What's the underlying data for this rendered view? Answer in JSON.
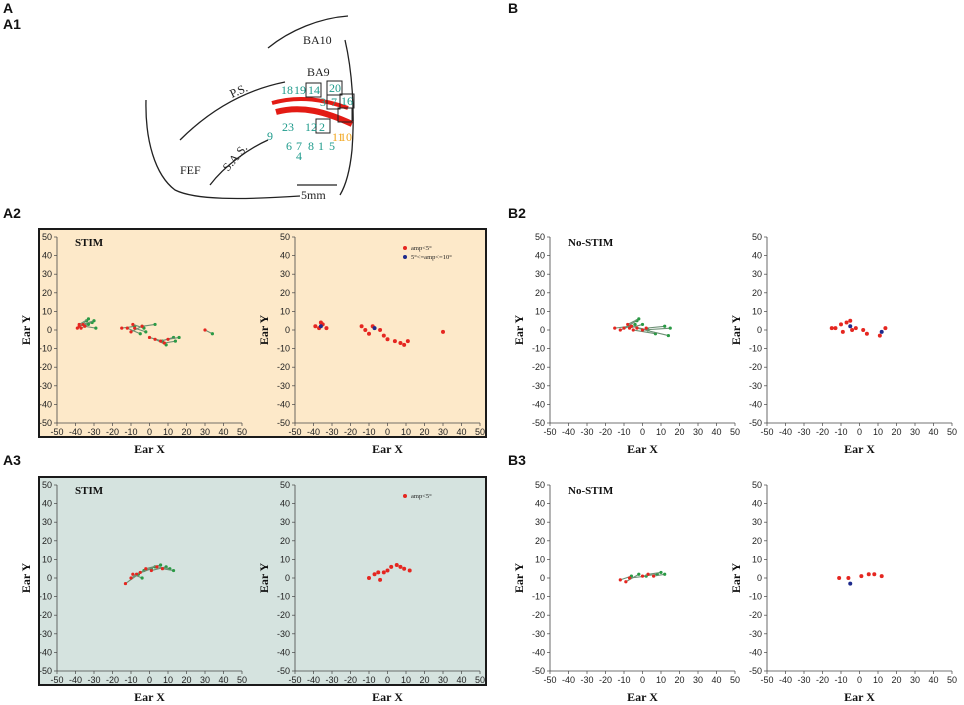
{
  "panel_labels": {
    "A": "A",
    "A1": "A1",
    "A2": "A2",
    "A3": "A3",
    "B": "B",
    "B2": "B2",
    "B3": "B3"
  },
  "colors": {
    "stim_bg_A2": "#fde9c9",
    "stim_bg_A3": "#d5e3df",
    "panel_border": "#1a1a1a",
    "start_point": "#e52620",
    "end_point": "#2a9a45",
    "amp_small": "#e52620",
    "amp_large": "#1d2a8c",
    "site_teal": "#1f9b8c",
    "site_orange": "#f2a51c",
    "sulcus": "#e31b14"
  },
  "brain_map": {
    "labels": {
      "ba10": "BA10",
      "ba9": "BA9",
      "ps": "P.S.",
      "sas": "S.A.S.",
      "fef": "FEF",
      "scale_bar": "5mm"
    },
    "sites_teal": [
      "18",
      "19",
      "14",
      "20",
      "3",
      "7",
      "16",
      "23",
      "12",
      "2",
      "9",
      "6",
      "7",
      "8",
      "1",
      "5",
      "4"
    ],
    "sites_orange": [
      "11",
      "10"
    ]
  },
  "chart_data": [
    {
      "id": "A2-left",
      "type": "line",
      "condition_label": "STIM",
      "xlabel": "Ear X",
      "ylabel": "Ear Y",
      "xlim": [
        -50,
        50
      ],
      "ylim": [
        -50,
        50
      ],
      "xticks": [
        -50,
        -40,
        -30,
        -20,
        -10,
        0,
        10,
        20,
        30,
        40,
        50
      ],
      "yticks": [
        50,
        40,
        30,
        20,
        10,
        0,
        -10,
        -20,
        -30,
        -40,
        -50
      ],
      "series": [
        {
          "name": "trajectory",
          "x0": -39,
          "y0": 1,
          "x1": -34,
          "y1": 5
        },
        {
          "name": "trajectory",
          "x0": -38,
          "y0": 2,
          "x1": -31,
          "y1": 4
        },
        {
          "name": "trajectory",
          "x0": -36,
          "y0": 3,
          "x1": -30,
          "y1": 5
        },
        {
          "name": "trajectory",
          "x0": -37,
          "y0": 1,
          "x1": -33,
          "y1": 3
        },
        {
          "name": "trajectory",
          "x0": -35,
          "y0": 2,
          "x1": -29,
          "y1": 1
        },
        {
          "name": "trajectory",
          "x0": -38,
          "y0": 3,
          "x1": -33,
          "y1": 6
        },
        {
          "name": "trajectory",
          "x0": -15,
          "y0": 1,
          "x1": -8,
          "y1": 2
        },
        {
          "name": "trajectory",
          "x0": -12,
          "y0": 1,
          "x1": -5,
          "y1": -2
        },
        {
          "name": "trajectory",
          "x0": -10,
          "y0": -1,
          "x1": -4,
          "y1": 2
        },
        {
          "name": "trajectory",
          "x0": -9,
          "y0": 3,
          "x1": -3,
          "y1": 1
        },
        {
          "name": "trajectory",
          "x0": -8,
          "y0": 1,
          "x1": -2,
          "y1": -1
        },
        {
          "name": "trajectory",
          "x0": -4,
          "y0": 2,
          "x1": 3,
          "y1": 3
        },
        {
          "name": "trajectory",
          "x0": 0,
          "y0": -4,
          "x1": 7,
          "y1": -6
        },
        {
          "name": "trajectory",
          "x0": 3,
          "y0": -5,
          "x1": 9,
          "y1": -8
        },
        {
          "name": "trajectory",
          "x0": 6,
          "y0": -6,
          "x1": 13,
          "y1": -4
        },
        {
          "name": "trajectory",
          "x0": 8,
          "y0": -7,
          "x1": 14,
          "y1": -6
        },
        {
          "name": "trajectory",
          "x0": 10,
          "y0": -5,
          "x1": 16,
          "y1": -4
        },
        {
          "name": "trajectory",
          "x0": 30,
          "y0": 0,
          "x1": 34,
          "y1": -2
        }
      ]
    },
    {
      "id": "A2-right",
      "type": "scatter",
      "xlabel": "Ear X",
      "ylabel": "Ear Y",
      "xlim": [
        -50,
        50
      ],
      "ylim": [
        -50,
        50
      ],
      "xticks": [
        -50,
        -40,
        -30,
        -20,
        -10,
        0,
        10,
        20,
        30,
        40,
        50
      ],
      "yticks": [
        50,
        40,
        30,
        20,
        10,
        0,
        -10,
        -20,
        -30,
        -40,
        -50
      ],
      "legend": [
        {
          "label": "amp<5°",
          "color_key": "amp_small"
        },
        {
          "label": "5°<=amp<=10°",
          "color_key": "amp_large"
        }
      ],
      "series": [
        {
          "name": "amp<5°",
          "color_key": "amp_small",
          "points": [
            [
              -39,
              2
            ],
            [
              -37,
              1
            ],
            [
              -36,
              4
            ],
            [
              -35,
              3
            ],
            [
              -33,
              1
            ],
            [
              -14,
              2
            ],
            [
              -12,
              0
            ],
            [
              -10,
              -2
            ],
            [
              -8,
              2
            ],
            [
              -4,
              0
            ],
            [
              -2,
              -3
            ],
            [
              0,
              -5
            ],
            [
              4,
              -6
            ],
            [
              7,
              -7
            ],
            [
              9,
              -8
            ],
            [
              11,
              -6
            ],
            [
              30,
              -1
            ]
          ]
        },
        {
          "name": "5°<=amp<=10°",
          "color_key": "amp_large",
          "points": [
            [
              -36,
              2
            ],
            [
              -7,
              1
            ]
          ]
        }
      ]
    },
    {
      "id": "A3-left",
      "type": "line",
      "condition_label": "STIM",
      "xlabel": "Ear X",
      "ylabel": "Ear Y",
      "xlim": [
        -50,
        50
      ],
      "ylim": [
        -50,
        50
      ],
      "xticks": [
        -50,
        -40,
        -30,
        -20,
        -10,
        0,
        10,
        20,
        30,
        40,
        50
      ],
      "yticks": [
        50,
        40,
        30,
        20,
        10,
        0,
        -10,
        -20,
        -30,
        -40,
        -50
      ],
      "series": [
        {
          "name": "trajectory",
          "x0": -13,
          "y0": -3,
          "x1": -6,
          "y1": 2
        },
        {
          "name": "trajectory",
          "x0": -10,
          "y0": 0,
          "x1": -3,
          "y1": 4
        },
        {
          "name": "trajectory",
          "x0": -7,
          "y0": 2,
          "x1": 1,
          "y1": 5
        },
        {
          "name": "trajectory",
          "x0": -5,
          "y0": 3,
          "x1": 3,
          "y1": 6
        },
        {
          "name": "trajectory",
          "x0": -2,
          "y0": 5,
          "x1": 6,
          "y1": 7
        },
        {
          "name": "trajectory",
          "x0": 1,
          "y0": 4,
          "x1": 9,
          "y1": 6
        },
        {
          "name": "trajectory",
          "x0": 4,
          "y0": 6,
          "x1": 11,
          "y1": 5
        },
        {
          "name": "trajectory",
          "x0": 7,
          "y0": 5,
          "x1": 13,
          "y1": 4
        },
        {
          "name": "trajectory",
          "x0": -9,
          "y0": 2,
          "x1": -4,
          "y1": 0
        }
      ]
    },
    {
      "id": "A3-right",
      "type": "scatter",
      "xlabel": "Ear X",
      "ylabel": "Ear Y",
      "xlim": [
        -50,
        50
      ],
      "ylim": [
        -50,
        50
      ],
      "xticks": [
        -50,
        -40,
        -30,
        -20,
        -10,
        0,
        10,
        20,
        30,
        40,
        50
      ],
      "yticks": [
        50,
        40,
        30,
        20,
        10,
        0,
        -10,
        -20,
        -30,
        -40,
        -50
      ],
      "legend": [
        {
          "label": "amp<5°",
          "color_key": "amp_small"
        }
      ],
      "series": [
        {
          "name": "amp<5°",
          "color_key": "amp_small",
          "points": [
            [
              -10,
              0
            ],
            [
              -7,
              2
            ],
            [
              -5,
              3
            ],
            [
              -4,
              -1
            ],
            [
              -2,
              3
            ],
            [
              0,
              4
            ],
            [
              2,
              6
            ],
            [
              5,
              7
            ],
            [
              7,
              6
            ],
            [
              9,
              5
            ],
            [
              12,
              4
            ]
          ]
        }
      ]
    },
    {
      "id": "B2-left",
      "type": "line",
      "condition_label": "No-STIM",
      "xlabel": "Ear X",
      "ylabel": "Ear Y",
      "xlim": [
        -50,
        50
      ],
      "ylim": [
        -50,
        50
      ],
      "xticks": [
        -50,
        -40,
        -30,
        -20,
        -10,
        0,
        10,
        20,
        30,
        40,
        50
      ],
      "yticks": [
        50,
        40,
        30,
        20,
        10,
        0,
        -10,
        -20,
        -30,
        -40,
        -50
      ],
      "series": [
        {
          "name": "trajectory",
          "x0": -15,
          "y0": 1,
          "x1": -7,
          "y1": 2
        },
        {
          "name": "trajectory",
          "x0": -12,
          "y0": 0,
          "x1": -4,
          "y1": 3
        },
        {
          "name": "trajectory",
          "x0": -10,
          "y0": 1,
          "x1": -3,
          "y1": 5
        },
        {
          "name": "trajectory",
          "x0": -8,
          "y0": 3,
          "x1": -2,
          "y1": 6
        },
        {
          "name": "trajectory",
          "x0": -7,
          "y0": 1,
          "x1": 0,
          "y1": 3
        },
        {
          "name": "trajectory",
          "x0": -6,
          "y0": 2,
          "x1": 3,
          "y1": 0
        },
        {
          "name": "trajectory",
          "x0": -5,
          "y0": 0,
          "x1": 7,
          "y1": -2
        },
        {
          "name": "trajectory",
          "x0": -3,
          "y0": 1,
          "x1": 14,
          "y1": -3
        },
        {
          "name": "trajectory",
          "x0": 0,
          "y0": 0,
          "x1": 15,
          "y1": 1
        },
        {
          "name": "trajectory",
          "x0": 2,
          "y0": 1,
          "x1": 12,
          "y1": 2
        }
      ]
    },
    {
      "id": "B2-right",
      "type": "scatter",
      "xlabel": "Ear X",
      "ylabel": "Ear Y",
      "xlim": [
        -50,
        50
      ],
      "ylim": [
        -50,
        50
      ],
      "xticks": [
        -50,
        -40,
        -30,
        -20,
        -10,
        0,
        10,
        20,
        30,
        40,
        50
      ],
      "yticks": [
        50,
        40,
        30,
        20,
        10,
        0,
        -10,
        -20,
        -30,
        -40,
        -50
      ],
      "series": [
        {
          "name": "amp<5°",
          "color_key": "amp_small",
          "points": [
            [
              -15,
              1
            ],
            [
              -13,
              1
            ],
            [
              -10,
              3
            ],
            [
              -9,
              -1
            ],
            [
              -7,
              4
            ],
            [
              -5,
              5
            ],
            [
              -4,
              0
            ],
            [
              -2,
              1
            ],
            [
              2,
              0
            ],
            [
              4,
              -2
            ],
            [
              11,
              -3
            ],
            [
              14,
              1
            ]
          ]
        },
        {
          "name": "5°<=amp<=10°",
          "color_key": "amp_large",
          "points": [
            [
              -5,
              2
            ],
            [
              12,
              -1
            ]
          ]
        }
      ]
    },
    {
      "id": "B3-left",
      "type": "line",
      "condition_label": "No-STIM",
      "xlabel": "Ear X",
      "ylabel": "Ear Y",
      "xlim": [
        -50,
        50
      ],
      "ylim": [
        -50,
        50
      ],
      "xticks": [
        -50,
        -40,
        -30,
        -20,
        -10,
        0,
        10,
        20,
        30,
        40,
        50
      ],
      "yticks": [
        50,
        40,
        30,
        20,
        10,
        0,
        -10,
        -20,
        -30,
        -40,
        -50
      ],
      "series": [
        {
          "name": "trajectory",
          "x0": -12,
          "y0": -1,
          "x1": -6,
          "y1": 1
        },
        {
          "name": "trajectory",
          "x0": -9,
          "y0": -2,
          "x1": -2,
          "y1": 2
        },
        {
          "name": "trajectory",
          "x0": -7,
          "y0": 0,
          "x1": 2,
          "y1": 1
        },
        {
          "name": "trajectory",
          "x0": 0,
          "y0": 1,
          "x1": 8,
          "y1": 2
        },
        {
          "name": "trajectory",
          "x0": 3,
          "y0": 2,
          "x1": 10,
          "y1": 3
        },
        {
          "name": "trajectory",
          "x0": 6,
          "y0": 1,
          "x1": 12,
          "y1": 2
        }
      ]
    },
    {
      "id": "B3-right",
      "type": "scatter",
      "xlabel": "Ear X",
      "ylabel": "Ear Y",
      "xlim": [
        -50,
        50
      ],
      "ylim": [
        -50,
        50
      ],
      "xticks": [
        -50,
        -40,
        -30,
        -20,
        -10,
        0,
        10,
        20,
        30,
        40,
        50
      ],
      "yticks": [
        50,
        40,
        30,
        20,
        10,
        0,
        -10,
        -20,
        -30,
        -40,
        -50
      ],
      "series": [
        {
          "name": "amp<5°",
          "color_key": "amp_small",
          "points": [
            [
              -11,
              0
            ],
            [
              -6,
              0
            ],
            [
              1,
              1
            ],
            [
              5,
              2
            ],
            [
              8,
              2
            ],
            [
              12,
              1
            ]
          ]
        },
        {
          "name": "5°<=amp<=10°",
          "color_key": "amp_large",
          "points": [
            [
              -5,
              -3
            ]
          ]
        }
      ]
    }
  ]
}
